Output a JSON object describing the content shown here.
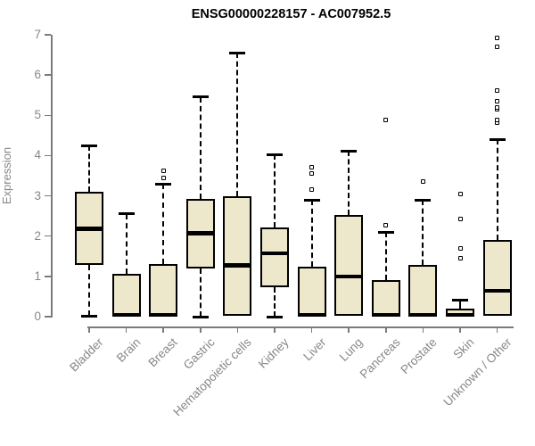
{
  "chart_data": {
    "type": "boxplot",
    "title": "ENSG00000228157 - AC007952.5",
    "ylabel": "Expression",
    "ylim": [
      0,
      7
    ],
    "yticks": [
      0,
      1,
      2,
      3,
      4,
      5,
      6,
      7
    ],
    "grid": false,
    "legend": "none",
    "categories": [
      "Bladder",
      "Brain",
      "Breast",
      "Gastric",
      "Hematopoietic cells",
      "Kidney",
      "Liver",
      "Lung",
      "Pancreas",
      "Prostate",
      "Skin",
      "Unknown / Other"
    ],
    "series": [
      {
        "name": "Bladder",
        "min": 0.02,
        "q1": 1.28,
        "median": 2.18,
        "q3": 3.1,
        "max": 4.25,
        "outliers": []
      },
      {
        "name": "Brain",
        "min": 0,
        "q1": 0,
        "median": 0.05,
        "q3": 1.07,
        "max": 2.55,
        "outliers": []
      },
      {
        "name": "Breast",
        "min": 0,
        "q1": 0,
        "median": 0.05,
        "q3": 1.31,
        "max": 3.3,
        "outliers": [
          3.45,
          3.62
        ]
      },
      {
        "name": "Gastric",
        "min": 0,
        "q1": 1.2,
        "median": 2.07,
        "q3": 2.92,
        "max": 5.45,
        "outliers": []
      },
      {
        "name": "Hematopoietic cells",
        "min": 0,
        "q1": 0.02,
        "median": 1.27,
        "q3": 2.98,
        "max": 6.55,
        "outliers": []
      },
      {
        "name": "Kidney",
        "min": 0,
        "q1": 0.74,
        "median": 1.57,
        "q3": 2.22,
        "max": 4.03,
        "outliers": []
      },
      {
        "name": "Liver",
        "min": 0,
        "q1": 0,
        "median": 0.05,
        "q3": 1.24,
        "max": 2.9,
        "outliers": [
          3.15,
          3.55,
          3.7
        ]
      },
      {
        "name": "Lung",
        "min": 0,
        "q1": 0.02,
        "median": 1.0,
        "q3": 2.52,
        "max": 4.12,
        "outliers": []
      },
      {
        "name": "Pancreas",
        "min": 0,
        "q1": 0,
        "median": 0.05,
        "q3": 0.9,
        "max": 2.1,
        "outliers": [
          2.27,
          4.89
        ]
      },
      {
        "name": "Prostate",
        "min": 0,
        "q1": 0,
        "median": 0.05,
        "q3": 1.29,
        "max": 2.9,
        "outliers": [
          3.35
        ]
      },
      {
        "name": "Skin",
        "min": 0,
        "q1": 0,
        "median": 0.05,
        "q3": 0.21,
        "max": 0.42,
        "outliers": [
          1.45,
          1.7,
          2.42,
          3.05
        ]
      },
      {
        "name": "Unknown / Other",
        "min": 0,
        "q1": 0.02,
        "median": 0.64,
        "q3": 1.9,
        "max": 4.4,
        "outliers": [
          4.82,
          4.88,
          5.14,
          5.2,
          5.34,
          5.62,
          6.71,
          6.93
        ]
      }
    ],
    "colors": {
      "box_fill": "#EDE7CB",
      "box_border": "#000000",
      "median": "#000000",
      "whisker": "#000000",
      "axis": "#7B7B7B",
      "tick_label": "#878787",
      "title": "#000000",
      "background": "#FFFFFF"
    }
  }
}
